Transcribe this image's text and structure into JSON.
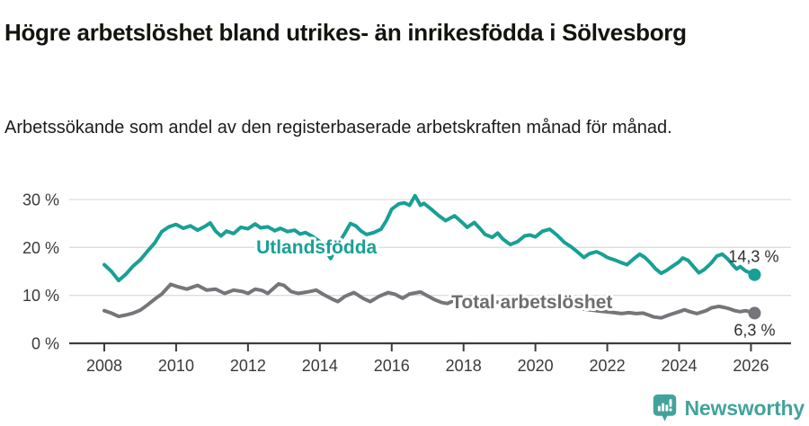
{
  "chart_data": {
    "type": "line",
    "title": "Högre arbetslöshet bland utrikes- än inrikesfödda i Sölvesborg",
    "subtitle": "Arbetssökande som andel av den registerbaserade arbetskraften månad för månad.",
    "x_axis": {
      "ticks": [
        2008,
        2010,
        2012,
        2014,
        2016,
        2018,
        2020,
        2022,
        2024,
        2026
      ],
      "range": [
        2007.0,
        2027.1
      ],
      "gridlines": false
    },
    "y_axis": {
      "ticks": [
        0,
        10,
        20,
        30
      ],
      "tick_suffix": " %",
      "range": [
        0,
        33
      ],
      "gridlines": true,
      "gridline_color": "#dedede"
    },
    "axis_color": "#3d3d3d",
    "series": [
      {
        "name": "Utlandsfödda",
        "color": "#18a096",
        "label": {
          "text": "Utlandsfödda",
          "year": 2012.23,
          "value": 18.75
        },
        "end_label": "14,3 %",
        "end_value": 14.3,
        "points": [
          [
            2008.0,
            16.4
          ],
          [
            2008.2,
            15.0
          ],
          [
            2008.4,
            13.1
          ],
          [
            2008.6,
            14.4
          ],
          [
            2008.8,
            16.1
          ],
          [
            2009.0,
            17.4
          ],
          [
            2009.2,
            19.2
          ],
          [
            2009.4,
            20.9
          ],
          [
            2009.6,
            23.3
          ],
          [
            2009.8,
            24.3
          ],
          [
            2010.0,
            24.8
          ],
          [
            2010.2,
            24.0
          ],
          [
            2010.4,
            24.5
          ],
          [
            2010.6,
            23.6
          ],
          [
            2010.8,
            24.4
          ],
          [
            2010.95,
            25.1
          ],
          [
            2011.1,
            23.4
          ],
          [
            2011.25,
            22.4
          ],
          [
            2011.4,
            23.4
          ],
          [
            2011.6,
            22.9
          ],
          [
            2011.8,
            24.2
          ],
          [
            2012.0,
            23.9
          ],
          [
            2012.2,
            24.9
          ],
          [
            2012.35,
            24.1
          ],
          [
            2012.55,
            24.3
          ],
          [
            2012.75,
            23.5
          ],
          [
            2012.9,
            24.0
          ],
          [
            2013.1,
            23.3
          ],
          [
            2013.3,
            23.6
          ],
          [
            2013.45,
            22.8
          ],
          [
            2013.6,
            23.1
          ],
          [
            2013.8,
            22.3
          ],
          [
            2014.0,
            21.2
          ],
          [
            2014.15,
            19.6
          ],
          [
            2014.3,
            17.7
          ],
          [
            2014.5,
            20.6
          ],
          [
            2014.7,
            23.0
          ],
          [
            2014.85,
            25.0
          ],
          [
            2015.0,
            24.5
          ],
          [
            2015.15,
            23.4
          ],
          [
            2015.3,
            22.7
          ],
          [
            2015.5,
            23.1
          ],
          [
            2015.7,
            23.8
          ],
          [
            2015.85,
            25.6
          ],
          [
            2016.0,
            28.0
          ],
          [
            2016.2,
            29.1
          ],
          [
            2016.35,
            29.3
          ],
          [
            2016.5,
            28.8
          ],
          [
            2016.65,
            30.8
          ],
          [
            2016.8,
            28.8
          ],
          [
            2016.9,
            29.2
          ],
          [
            2017.1,
            28.0
          ],
          [
            2017.3,
            26.7
          ],
          [
            2017.5,
            25.6
          ],
          [
            2017.75,
            26.6
          ],
          [
            2017.95,
            25.3
          ],
          [
            2018.1,
            24.2
          ],
          [
            2018.3,
            25.2
          ],
          [
            2018.45,
            24.0
          ],
          [
            2018.6,
            22.7
          ],
          [
            2018.8,
            22.1
          ],
          [
            2018.95,
            23.0
          ],
          [
            2019.1,
            21.7
          ],
          [
            2019.3,
            20.6
          ],
          [
            2019.5,
            21.2
          ],
          [
            2019.7,
            22.4
          ],
          [
            2019.85,
            22.6
          ],
          [
            2020.0,
            22.2
          ],
          [
            2020.2,
            23.4
          ],
          [
            2020.4,
            23.8
          ],
          [
            2020.6,
            22.6
          ],
          [
            2020.8,
            21.1
          ],
          [
            2021.0,
            20.1
          ],
          [
            2021.15,
            19.2
          ],
          [
            2021.35,
            17.9
          ],
          [
            2021.5,
            18.7
          ],
          [
            2021.7,
            19.1
          ],
          [
            2021.85,
            18.6
          ],
          [
            2022.0,
            17.9
          ],
          [
            2022.2,
            17.4
          ],
          [
            2022.4,
            16.8
          ],
          [
            2022.55,
            16.4
          ],
          [
            2022.7,
            17.4
          ],
          [
            2022.9,
            18.6
          ],
          [
            2023.05,
            17.9
          ],
          [
            2023.2,
            16.8
          ],
          [
            2023.35,
            15.5
          ],
          [
            2023.5,
            14.6
          ],
          [
            2023.65,
            15.2
          ],
          [
            2023.8,
            16.0
          ],
          [
            2024.0,
            17.0
          ],
          [
            2024.1,
            17.8
          ],
          [
            2024.25,
            17.3
          ],
          [
            2024.4,
            16.0
          ],
          [
            2024.55,
            14.7
          ],
          [
            2024.7,
            15.4
          ],
          [
            2024.9,
            16.8
          ],
          [
            2025.05,
            18.2
          ],
          [
            2025.2,
            18.6
          ],
          [
            2025.35,
            17.6
          ],
          [
            2025.5,
            16.3
          ],
          [
            2025.6,
            15.5
          ],
          [
            2025.7,
            16.0
          ],
          [
            2025.85,
            15.1
          ],
          [
            2026.0,
            14.6
          ],
          [
            2026.1,
            14.3
          ]
        ]
      },
      {
        "name": "Total arbetslöshet",
        "color": "#75767a",
        "label_color": "#6d6e71",
        "label": {
          "text": "Total arbetslöshet",
          "year": 2017.66,
          "value": 7.3
        },
        "end_label": "6,3 %",
        "end_value": 6.3,
        "points": [
          [
            2008.0,
            6.8
          ],
          [
            2008.2,
            6.3
          ],
          [
            2008.4,
            5.6
          ],
          [
            2008.6,
            5.9
          ],
          [
            2008.8,
            6.3
          ],
          [
            2009.0,
            6.9
          ],
          [
            2009.2,
            8.0
          ],
          [
            2009.4,
            9.2
          ],
          [
            2009.6,
            10.3
          ],
          [
            2009.85,
            12.3
          ],
          [
            2010.05,
            11.8
          ],
          [
            2010.3,
            11.3
          ],
          [
            2010.6,
            12.1
          ],
          [
            2010.85,
            11.1
          ],
          [
            2011.1,
            11.3
          ],
          [
            2011.35,
            10.4
          ],
          [
            2011.6,
            11.1
          ],
          [
            2011.85,
            10.8
          ],
          [
            2012.0,
            10.4
          ],
          [
            2012.2,
            11.3
          ],
          [
            2012.4,
            11.0
          ],
          [
            2012.55,
            10.4
          ],
          [
            2012.85,
            12.4
          ],
          [
            2013.0,
            12.1
          ],
          [
            2013.2,
            10.8
          ],
          [
            2013.4,
            10.4
          ],
          [
            2013.65,
            10.7
          ],
          [
            2013.9,
            11.1
          ],
          [
            2014.1,
            10.2
          ],
          [
            2014.35,
            9.2
          ],
          [
            2014.5,
            8.7
          ],
          [
            2014.7,
            9.8
          ],
          [
            2014.95,
            10.6
          ],
          [
            2015.2,
            9.4
          ],
          [
            2015.4,
            8.7
          ],
          [
            2015.65,
            9.8
          ],
          [
            2015.9,
            10.6
          ],
          [
            2016.1,
            10.2
          ],
          [
            2016.3,
            9.4
          ],
          [
            2016.5,
            10.3
          ],
          [
            2016.8,
            10.7
          ],
          [
            2017.0,
            9.9
          ],
          [
            2017.2,
            9.1
          ],
          [
            2017.4,
            8.5
          ],
          [
            2017.55,
            8.3
          ],
          [
            2017.75,
            9.0
          ],
          [
            2017.95,
            9.4
          ],
          [
            2018.15,
            9.0
          ],
          [
            2018.35,
            8.4
          ],
          [
            2018.55,
            8.0
          ],
          [
            2018.75,
            8.3
          ],
          [
            2018.95,
            8.6
          ],
          [
            2019.15,
            8.2
          ],
          [
            2019.4,
            7.7
          ],
          [
            2019.6,
            7.5
          ],
          [
            2019.85,
            7.9
          ],
          [
            2020.1,
            8.4
          ],
          [
            2020.4,
            8.8
          ],
          [
            2020.65,
            8.4
          ],
          [
            2020.9,
            7.9
          ],
          [
            2021.1,
            7.5
          ],
          [
            2021.4,
            7.1
          ],
          [
            2021.7,
            6.8
          ],
          [
            2021.95,
            6.6
          ],
          [
            2022.2,
            6.4
          ],
          [
            2022.4,
            6.2
          ],
          [
            2022.6,
            6.4
          ],
          [
            2022.8,
            6.2
          ],
          [
            2023.0,
            6.3
          ],
          [
            2023.15,
            5.9
          ],
          [
            2023.3,
            5.5
          ],
          [
            2023.5,
            5.3
          ],
          [
            2023.75,
            6.0
          ],
          [
            2024.0,
            6.6
          ],
          [
            2024.15,
            7.0
          ],
          [
            2024.3,
            6.6
          ],
          [
            2024.5,
            6.2
          ],
          [
            2024.75,
            6.8
          ],
          [
            2024.9,
            7.4
          ],
          [
            2025.1,
            7.7
          ],
          [
            2025.25,
            7.5
          ],
          [
            2025.4,
            7.2
          ],
          [
            2025.55,
            6.8
          ],
          [
            2025.7,
            6.6
          ],
          [
            2025.85,
            6.8
          ],
          [
            2026.0,
            6.5
          ],
          [
            2026.1,
            6.3
          ]
        ]
      }
    ],
    "legend_position": "inline-labels"
  },
  "footer": {
    "brand": "Newsworthy",
    "brand_color": "#42a39c"
  }
}
